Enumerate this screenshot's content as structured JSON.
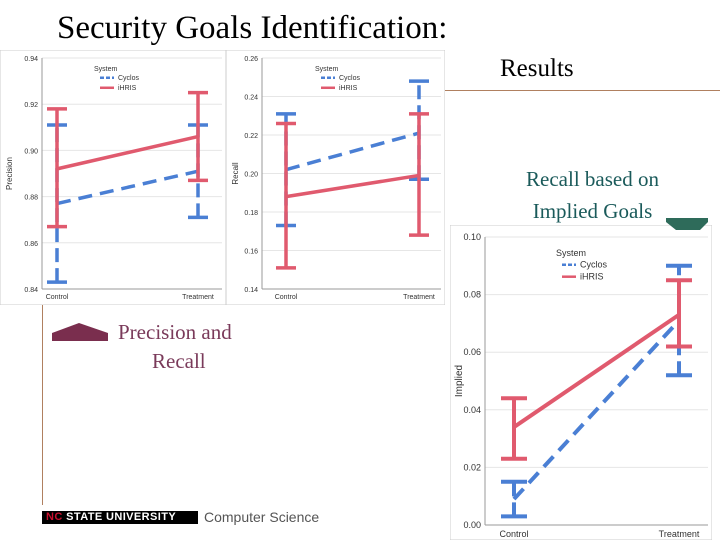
{
  "slide": {
    "title": "Security Goals Identification:",
    "subtitle": "Results",
    "note_implied": "Recall based on Implied Goals",
    "note_precision_line1": "Precision and",
    "note_precision_line2": "Recall",
    "footer_logo": "NC STATE UNIVERSITY",
    "footer_dept": "Computer Science"
  },
  "colors": {
    "cyclos": "#4a7fd4",
    "ihris": "#e05a6e",
    "grid": "#e6e6e6",
    "ink": "#333333"
  },
  "chart_data": [
    {
      "type": "line",
      "categories": [
        "Control",
        "Treatment"
      ],
      "ylabel": "Precision",
      "ylim": [
        0.84,
        0.94
      ],
      "yticks": [
        "0.84",
        "0.86",
        "0.88",
        "0.90",
        "0.92",
        "0.94"
      ],
      "legend_title": "System",
      "legend_position": "top-center",
      "series": [
        {
          "name": "Cyclos",
          "values": [
            0.877,
            0.891
          ],
          "err_low": [
            0.843,
            0.871
          ],
          "err_high": [
            0.911,
            0.911
          ]
        },
        {
          "name": "iHRIS",
          "values": [
            0.892,
            0.906
          ],
          "err_low": [
            0.867,
            0.887
          ],
          "err_high": [
            0.918,
            0.925
          ]
        }
      ]
    },
    {
      "type": "line",
      "categories": [
        "Control",
        "Treatment"
      ],
      "ylabel": "Recall",
      "ylim": [
        0.14,
        0.26
      ],
      "yticks": [
        "0.14",
        "0.16",
        "0.18",
        "0.20",
        "0.22",
        "0.24",
        "0.26"
      ],
      "legend_title": "System",
      "legend_position": "top-center",
      "series": [
        {
          "name": "Cyclos",
          "values": [
            0.202,
            0.221
          ],
          "err_low": [
            0.173,
            0.197
          ],
          "err_high": [
            0.231,
            0.248
          ]
        },
        {
          "name": "iHRIS",
          "values": [
            0.188,
            0.199
          ],
          "err_low": [
            0.151,
            0.168
          ],
          "err_high": [
            0.226,
            0.231
          ]
        }
      ]
    },
    {
      "type": "line",
      "categories": [
        "Control",
        "Treatment"
      ],
      "ylabel": "Implied",
      "ylim": [
        0,
        0.1
      ],
      "yticks": [
        "0.00",
        "0.02",
        "0.04",
        "0.06",
        "0.08",
        "0.10"
      ],
      "legend_title": "System",
      "legend_position": "top-center",
      "series": [
        {
          "name": "Cyclos",
          "values": [
            0.009,
            0.071
          ],
          "err_low": [
            0.003,
            0.052
          ],
          "err_high": [
            0.015,
            0.09
          ]
        },
        {
          "name": "iHRIS",
          "values": [
            0.034,
            0.073
          ],
          "err_low": [
            0.023,
            0.062
          ],
          "err_high": [
            0.044,
            0.085
          ]
        }
      ]
    }
  ]
}
